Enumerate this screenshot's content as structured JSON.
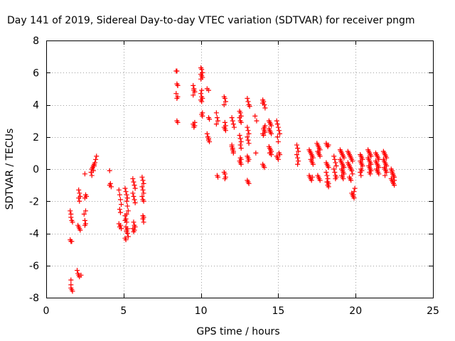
{
  "chart_data": {
    "type": "scatter",
    "title": "Day 141 of 2019, Sidereal Day-to-day VTEC variation (SDTVAR) for receiver pngm",
    "xlabel": "GPS time / hours",
    "ylabel": "SDTVAR / TECUs",
    "xlim": [
      0,
      25
    ],
    "ylim": [
      -8,
      8
    ],
    "x_ticks": [
      0,
      5,
      10,
      15,
      20,
      25
    ],
    "x_tick_labels": [
      "0",
      "5",
      "10",
      "15",
      "20",
      "25"
    ],
    "y_ticks": [
      -8,
      -6,
      -4,
      -2,
      0,
      2,
      4,
      6,
      8
    ],
    "y_tick_labels": [
      "-8",
      "-6",
      "-4",
      "-2",
      "0",
      "2",
      "4",
      "6",
      "8"
    ],
    "grid": true,
    "marker": "+",
    "colors": {
      "series": "#ff0000",
      "axis": "#000000",
      "grid": "#a0a0a0"
    },
    "series": [
      {
        "name": "pngm",
        "x": [
          1.55,
          1.6,
          1.6,
          1.65,
          1.7,
          1.55,
          1.6,
          1.65,
          1.6,
          1.6,
          1.6,
          1.65,
          1.7,
          2.1,
          2.15,
          2.2,
          2.1,
          2.15,
          2.05,
          2.1,
          2.15,
          2.2,
          2.0,
          2.05,
          2.1,
          2.15,
          2.25,
          2.5,
          2.55,
          2.6,
          2.5,
          2.55,
          2.45,
          2.5,
          2.55,
          2.5,
          2.9,
          2.95,
          3.0,
          3.05,
          3.1,
          3.15,
          3.2,
          3.25,
          2.95,
          3.05,
          3.1,
          4.1,
          4.15,
          4.1,
          4.2,
          4.7,
          4.75,
          4.8,
          4.85,
          4.75,
          4.8,
          4.7,
          4.75,
          4.8,
          4.85,
          5.1,
          5.15,
          5.2,
          5.25,
          5.2,
          5.25,
          5.3,
          5.1,
          5.15,
          5.2,
          5.15,
          5.2,
          5.25,
          5.3,
          5.1,
          5.15,
          5.2,
          5.25,
          5.1,
          5.2,
          5.6,
          5.65,
          5.7,
          5.75,
          5.6,
          5.65,
          5.7,
          5.75,
          5.65,
          5.7,
          5.75,
          5.6,
          5.7,
          5.65,
          6.2,
          6.25,
          6.3,
          6.2,
          6.25,
          6.3,
          6.2,
          6.25,
          6.3,
          6.25,
          6.3,
          6.25,
          6.3,
          8.4,
          8.45,
          8.5,
          8.45,
          8.5,
          8.4,
          8.45,
          8.5,
          8.45,
          8.5,
          9.5,
          9.55,
          9.6,
          9.5,
          9.55,
          9.6,
          9.55,
          9.5,
          9.55,
          9.6,
          10.0,
          10.05,
          10.1,
          10.0,
          10.05,
          10.1,
          10.0,
          10.05,
          10.0,
          10.05,
          10.1,
          10.0,
          10.05,
          10.1,
          10.05,
          10.1,
          10.4,
          10.5,
          10.5,
          10.55,
          10.4,
          10.45,
          10.5,
          10.5,
          10.55,
          11.0,
          11.05,
          11.1,
          11.0,
          11.05,
          11.1,
          11.5,
          11.55,
          11.6,
          11.5,
          11.55,
          11.6,
          11.5,
          11.55,
          11.6,
          11.5,
          11.55,
          11.6,
          11.55,
          12.0,
          12.05,
          12.1,
          12.15,
          12.0,
          12.05,
          12.1,
          12.0,
          12.05,
          12.1,
          12.5,
          12.55,
          12.6,
          12.5,
          12.55,
          12.6,
          12.5,
          12.55,
          12.6,
          12.55,
          12.6,
          12.55,
          12.6,
          12.5,
          12.55,
          12.6,
          13.0,
          13.05,
          13.1,
          13.15,
          13.0,
          13.05,
          13.1,
          13.0,
          13.05,
          13.1,
          13.0,
          13.05,
          13.1,
          13.0,
          13.05,
          13.1,
          13.05,
          13.5,
          13.6,
          13.55,
          14.0,
          14.05,
          14.1,
          14.15,
          14.0,
          14.05,
          14.1,
          14.15,
          14.0,
          14.05,
          14.1,
          14.15,
          14.0,
          14.05,
          14.1,
          14.4,
          14.45,
          14.5,
          14.55,
          14.4,
          14.45,
          14.5,
          14.55,
          14.4,
          14.45,
          14.5,
          14.55,
          14.45,
          14.5,
          14.55,
          14.9,
          14.95,
          15.0,
          15.05,
          15.1,
          14.95,
          15.0,
          15.05,
          15.1,
          14.9,
          14.95,
          15.0,
          16.2,
          16.25,
          16.3,
          16.2,
          16.25,
          16.3,
          16.25,
          17.0,
          17.05,
          17.1,
          17.15,
          17.2,
          17.25,
          17.1,
          17.15,
          17.2,
          17.25,
          17.0,
          17.05,
          17.1,
          17.15,
          17.2,
          17.5,
          17.55,
          17.6,
          17.65,
          17.7,
          17.55,
          17.6,
          17.65,
          17.7,
          17.55,
          17.6,
          17.65,
          17.7,
          18.1,
          18.15,
          18.2,
          18.25,
          18.1,
          18.15,
          18.2,
          18.25,
          18.1,
          18.15,
          18.2,
          18.15,
          18.2,
          18.25,
          18.2,
          18.25,
          18.6,
          18.65,
          18.7,
          18.75,
          18.6,
          18.65,
          18.7,
          18.75,
          18.7,
          19.0,
          19.05,
          19.1,
          19.15,
          19.2,
          19.25,
          19.0,
          19.05,
          19.1,
          19.15,
          19.2,
          19.25,
          19.1,
          19.15,
          19.2,
          19.25,
          19.1,
          19.15,
          19.2,
          19.5,
          19.55,
          19.6,
          19.65,
          19.7,
          19.75,
          19.8,
          19.5,
          19.55,
          19.6,
          19.65,
          19.7,
          19.75,
          19.8,
          19.6,
          19.65,
          19.7,
          19.75,
          19.8,
          19.85,
          19.9,
          19.85,
          19.9,
          19.95,
          20.3,
          20.35,
          20.4,
          20.45,
          20.3,
          20.35,
          20.4,
          20.45,
          20.35,
          20.4,
          20.3,
          20.35,
          20.8,
          20.85,
          20.9,
          20.95,
          21.0,
          20.8,
          20.85,
          20.9,
          20.95,
          21.0,
          20.85,
          20.9,
          20.95,
          21.0,
          20.9,
          20.95,
          21.3,
          21.35,
          21.4,
          21.45,
          21.5,
          21.3,
          21.35,
          21.4,
          21.45,
          21.5,
          21.35,
          21.4,
          21.45,
          21.5,
          21.8,
          21.85,
          21.9,
          21.95,
          22.0,
          21.8,
          21.85,
          21.9,
          21.95,
          22.0,
          21.85,
          21.9,
          21.95,
          22.0,
          21.9,
          22.3,
          22.35,
          22.4,
          22.45,
          22.5,
          22.3,
          22.35,
          22.4,
          22.45,
          22.5,
          22.35,
          22.4,
          22.45,
          22.5
        ],
        "y": [
          -2.6,
          -2.8,
          -3.0,
          -3.2,
          -3.3,
          -4.4,
          -4.5,
          -4.5,
          -6.9,
          -7.2,
          -7.4,
          -7.5,
          -7.6,
          -1.3,
          -1.5,
          -1.7,
          -1.8,
          -2.0,
          -3.5,
          -3.6,
          -3.7,
          -3.8,
          -6.3,
          -6.5,
          -6.6,
          -6.7,
          -6.6,
          -0.3,
          -1.6,
          -1.7,
          -1.8,
          -2.6,
          -2.8,
          -3.2,
          -3.4,
          -3.5,
          -0.2,
          0.0,
          0.1,
          0.2,
          0.3,
          0.4,
          0.6,
          0.8,
          -0.4,
          -0.1,
          0.2,
          -0.1,
          -0.9,
          -1.0,
          -1.1,
          -1.3,
          -1.6,
          -1.9,
          -2.2,
          -2.5,
          -2.7,
          -3.4,
          -3.6,
          -3.5,
          -3.7,
          -1.2,
          -1.4,
          -1.6,
          -1.8,
          -2.0,
          -2.3,
          -2.6,
          -2.9,
          -3.1,
          -3.3,
          -3.6,
          -3.8,
          -4.0,
          -4.2,
          -4.3,
          -4.4,
          -3.9,
          -3.7,
          -3.2,
          -2.8,
          -0.6,
          -0.8,
          -1.0,
          -1.2,
          -1.5,
          -1.7,
          -1.9,
          -2.1,
          -3.3,
          -3.5,
          -3.6,
          -3.7,
          -3.8,
          -3.9,
          -0.5,
          -0.7,
          -0.9,
          -1.1,
          -1.3,
          -1.5,
          -1.7,
          -1.9,
          -2.0,
          -2.9,
          -3.0,
          -3.1,
          -3.3,
          6.1,
          6.1,
          5.2,
          5.3,
          5.2,
          4.7,
          4.4,
          4.5,
          3.0,
          2.9,
          5.2,
          5.0,
          4.8,
          4.6,
          4.9,
          2.9,
          2.7,
          2.8,
          2.6,
          2.7,
          6.3,
          6.2,
          6.0,
          5.9,
          5.8,
          5.7,
          5.6,
          4.9,
          4.7,
          4.5,
          4.4,
          4.3,
          4.2,
          3.5,
          3.4,
          3.3,
          5.0,
          4.9,
          3.2,
          3.1,
          2.2,
          2.0,
          1.9,
          1.8,
          1.7,
          3.5,
          3.2,
          3.0,
          2.8,
          -0.4,
          -0.5,
          4.5,
          4.4,
          4.2,
          4.0,
          2.9,
          2.7,
          2.6,
          2.5,
          2.4,
          -0.2,
          -0.3,
          -0.5,
          -0.6,
          3.2,
          3.0,
          2.8,
          2.6,
          1.4,
          1.2,
          1.0,
          1.5,
          1.3,
          1.1,
          3.6,
          3.5,
          3.3,
          3.2,
          3.0,
          2.9,
          2.1,
          1.9,
          1.7,
          1.5,
          1.3,
          0.7,
          0.6,
          0.5,
          0.4,
          0.3,
          4.4,
          4.2,
          4.0,
          3.9,
          2.6,
          2.4,
          2.2,
          2.0,
          1.8,
          1.6,
          0.8,
          0.7,
          0.6,
          -0.7,
          -0.8,
          -0.9,
          0.5,
          3.3,
          3.0,
          1.0,
          4.3,
          4.2,
          4.0,
          3.8,
          4.1,
          2.5,
          2.4,
          2.3,
          2.2,
          2.1,
          2.6,
          2.7,
          0.3,
          0.2,
          0.1,
          3.0,
          2.9,
          2.8,
          2.7,
          2.5,
          2.4,
          2.3,
          2.2,
          1.4,
          1.3,
          1.2,
          1.1,
          1.0,
          1.0,
          0.9,
          3.0,
          2.8,
          2.6,
          2.4,
          2.2,
          2.0,
          1.7,
          1.0,
          0.9,
          0.8,
          0.7,
          0.6,
          1.5,
          1.3,
          1.1,
          0.9,
          0.7,
          0.5,
          0.3,
          1.2,
          1.1,
          1.0,
          0.9,
          0.8,
          0.7,
          0.6,
          0.5,
          0.4,
          0.3,
          -0.4,
          -0.5,
          -0.6,
          -0.7,
          -0.5,
          1.6,
          1.5,
          1.4,
          1.3,
          1.2,
          1.1,
          1.0,
          0.9,
          0.8,
          -0.4,
          -0.5,
          -0.6,
          -0.7,
          1.6,
          1.5,
          1.4,
          1.5,
          0.4,
          0.3,
          0.2,
          0.1,
          -0.2,
          -0.4,
          -0.6,
          -0.8,
          -1.0,
          -0.9,
          -0.8,
          -1.1,
          0.8,
          0.6,
          0.4,
          0.2,
          0.0,
          -0.2,
          -0.4,
          -0.5,
          -0.6,
          1.2,
          1.1,
          1.0,
          0.9,
          0.8,
          0.7,
          0.6,
          0.5,
          0.4,
          0.3,
          0.2,
          0.1,
          0.0,
          -0.1,
          -0.2,
          -0.3,
          -0.4,
          -0.5,
          -0.6,
          1.1,
          1.0,
          0.9,
          0.8,
          0.7,
          0.6,
          0.5,
          0.4,
          0.3,
          0.2,
          0.1,
          0.0,
          -0.1,
          -0.3,
          -0.5,
          -0.6,
          -0.7,
          -1.5,
          -1.6,
          -1.7,
          -1.8,
          -1.6,
          -1.4,
          -1.2,
          0.9,
          0.8,
          0.7,
          0.6,
          0.5,
          0.4,
          0.3,
          0.2,
          0.0,
          -0.1,
          -0.2,
          -0.4,
          1.2,
          1.1,
          1.0,
          0.9,
          0.8,
          0.7,
          0.6,
          0.5,
          0.4,
          0.3,
          0.2,
          0.1,
          0.0,
          -0.1,
          -0.2,
          -0.3,
          1.0,
          0.9,
          0.8,
          0.7,
          0.6,
          0.5,
          0.4,
          0.3,
          0.2,
          0.1,
          0.0,
          -0.1,
          -0.2,
          -0.3,
          1.1,
          1.0,
          0.9,
          0.8,
          0.7,
          0.6,
          0.5,
          0.4,
          0.3,
          0.2,
          0.1,
          0.0,
          -0.1,
          -0.2,
          -0.4,
          0.0,
          -0.2,
          -0.3,
          -0.4,
          -0.5,
          -0.6,
          -0.7,
          -0.8,
          -0.9,
          -1.0,
          -0.1,
          -0.3,
          -0.5,
          -0.7
        ]
      }
    ]
  }
}
